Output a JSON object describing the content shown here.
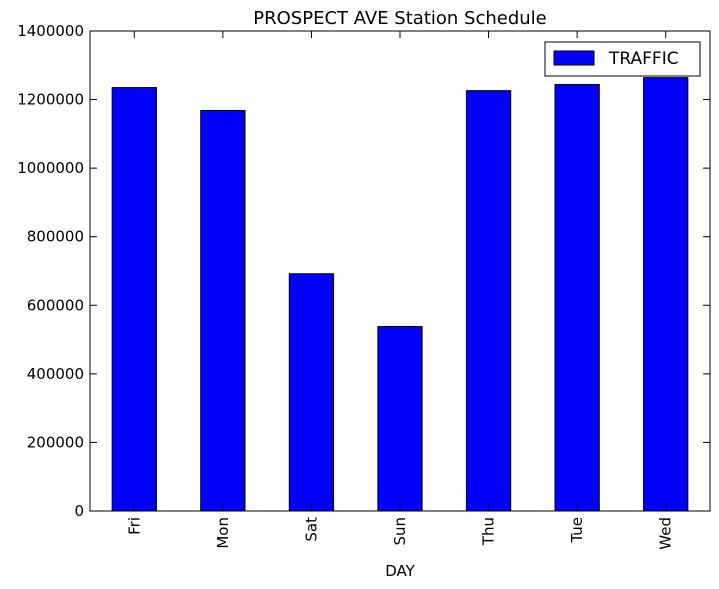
{
  "chart_data": {
    "type": "bar",
    "title": "PROSPECT AVE Station Schedule",
    "xlabel": "DAY",
    "ylabel": "",
    "categories": [
      "Fri",
      "Mon",
      "Sat",
      "Sun",
      "Thu",
      "Tue",
      "Wed"
    ],
    "series": [
      {
        "name": "TRAFFIC",
        "values": [
          1235000,
          1168000,
          692000,
          538000,
          1226000,
          1244000,
          1264000
        ],
        "color": "#0000ff"
      }
    ],
    "ylim": [
      0,
      1400000
    ],
    "yticks": [
      0,
      200000,
      400000,
      600000,
      800000,
      1000000,
      1200000,
      1400000
    ],
    "ytick_labels": [
      "0",
      "200000",
      "400000",
      "600000",
      "800000",
      "1000000",
      "1200000",
      "1400000"
    ],
    "grid": false,
    "legend_position": "top-right",
    "xtick_rotation": "vertical"
  }
}
